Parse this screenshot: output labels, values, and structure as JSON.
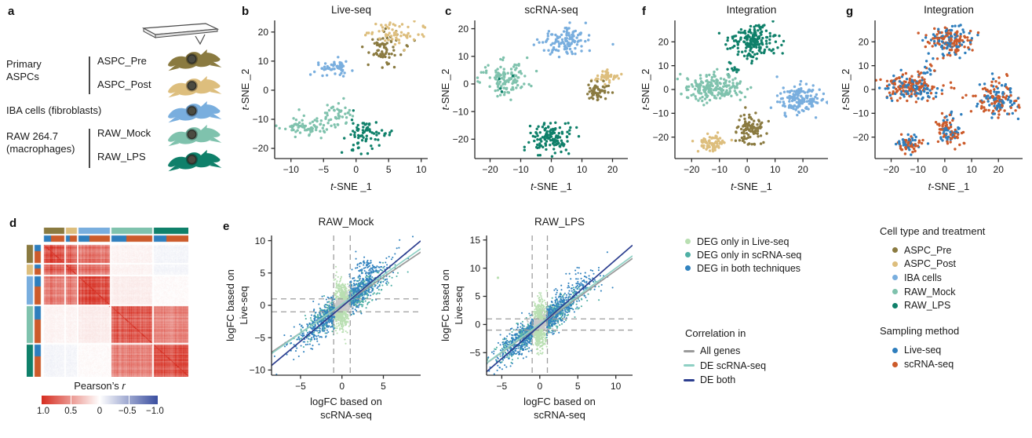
{
  "panels": {
    "a": "a",
    "b": "b",
    "c": "c",
    "d": "d",
    "e": "e",
    "f": "f",
    "g": "g"
  },
  "colors": {
    "ASPC_Pre": "#8a7a40",
    "ASPC_Post": "#ddbe7d",
    "IBA": "#79aede",
    "RAW_Mock": "#7fc2ad",
    "RAW_LPS": "#0f806a",
    "live_seq": "#2e7ebd",
    "scrna_seq": "#cc5b2b",
    "deg_live": "#b9dfb2",
    "deg_scrna": "#4fb0a5",
    "deg_both": "#3283bf",
    "pt_gray": "#c8c8c8",
    "line_all": "#9a9a9a",
    "line_de_scrna": "#8ed0c4",
    "line_de_both": "#2c3e8f",
    "heat_pos": "#d62d20",
    "heat_neg": "#3a4ea0",
    "axis": "#2b2b2b",
    "dash": "#9f9f9f"
  },
  "panel_a": {
    "label": "a",
    "groups": [
      {
        "line1": "Primary",
        "line2": "ASPCs",
        "items": [
          {
            "label": "ASPC_Pre",
            "color_key": "ASPC_Pre"
          },
          {
            "label": "ASPC_Post",
            "color_key": "ASPC_Post"
          }
        ]
      },
      {
        "line1": "IBA cells (fibroblasts)",
        "line2": "",
        "items": [
          {
            "label": "",
            "color_key": "IBA"
          }
        ]
      },
      {
        "line1": "RAW 264.7",
        "line2": "(macrophages)",
        "items": [
          {
            "label": "RAW_Mock",
            "color_key": "RAW_Mock"
          },
          {
            "label": "RAW_LPS",
            "color_key": "RAW_LPS"
          }
        ]
      }
    ]
  },
  "legend_deg": {
    "items": [
      {
        "label": "DEG only in Live-seq",
        "color_key": "deg_live"
      },
      {
        "label": "DEG only in scRNA-seq",
        "color_key": "deg_scrna"
      },
      {
        "label": "DEG in both techniques",
        "color_key": "deg_both"
      }
    ]
  },
  "legend_correlation": {
    "title": "Correlation in",
    "items": [
      {
        "label": "All genes",
        "color_key": "line_all"
      },
      {
        "label": "DE scRNA-seq",
        "color_key": "line_de_scrna"
      },
      {
        "label": "DE both",
        "color_key": "line_de_both"
      }
    ]
  },
  "legend_cell_type": {
    "title": "Cell type and treatment",
    "items": [
      {
        "label": "ASPC_Pre",
        "color_key": "ASPC_Pre"
      },
      {
        "label": "ASPC_Post",
        "color_key": "ASPC_Post"
      },
      {
        "label": "IBA cells",
        "color_key": "IBA"
      },
      {
        "label": "RAW_Mock",
        "color_key": "RAW_Mock"
      },
      {
        "label": "RAW_LPS",
        "color_key": "RAW_LPS"
      }
    ]
  },
  "legend_sampling": {
    "title": "Sampling method",
    "items": [
      {
        "label": "Live-seq",
        "color_key": "live_seq"
      },
      {
        "label": "scRNA-seq",
        "color_key": "scrna_seq"
      }
    ]
  },
  "chart_data": [
    {
      "id": "b",
      "type": "scatter",
      "kind": "tsne",
      "title": "Live-seq",
      "xlabel": "t-SNE _1",
      "ylabel": "t-SNE _2",
      "italic_first": true,
      "xlim": [
        -12.5,
        11
      ],
      "xticks": [
        -10,
        -5,
        0,
        5,
        10
      ],
      "ylim": [
        -23.5,
        24
      ],
      "yticks": [
        -20,
        -10,
        0,
        10,
        20
      ],
      "grid": false,
      "legend_position": "none",
      "clusters": [
        {
          "name": "ASPC_Pre",
          "color_key": "ASPC_Pre",
          "n": 70,
          "cx": 4.3,
          "cy": 14.5,
          "sx": 1.5,
          "sy": 2.8
        },
        {
          "name": "ASPC_Post",
          "color_key": "ASPC_Post",
          "n": 60,
          "cx": 6.6,
          "cy": 19,
          "sx": 2.1,
          "sy": 2.1
        },
        {
          "name": "IBA cells",
          "color_key": "IBA",
          "n": 50,
          "cx": -3.3,
          "cy": 7.6,
          "sx": 1.8,
          "sy": 1.5
        },
        {
          "name": "RAW_Mock",
          "color_key": "RAW_Mock",
          "n": 75,
          "cx": -7.5,
          "cy": -12.3,
          "sx": 2.2,
          "sy": 1.9
        },
        {
          "name": "RAW_Mock",
          "color_key": "RAW_Mock",
          "n": 40,
          "cx": -2.6,
          "cy": -7.8,
          "sx": 1.4,
          "sy": 2.2
        },
        {
          "name": "RAW_LPS",
          "color_key": "RAW_LPS",
          "n": 65,
          "cx": 0.8,
          "cy": -15.5,
          "sx": 1.2,
          "sy": 3.4
        },
        {
          "name": "RAW_LPS",
          "color_key": "RAW_LPS",
          "n": 10,
          "cx": 3.6,
          "cy": -14.6,
          "sx": 1.3,
          "sy": 0.5
        }
      ]
    },
    {
      "id": "c",
      "type": "scatter",
      "kind": "tsne",
      "title": "scRNA-seq",
      "xlabel": "t-SNE _1",
      "ylabel": "t-SNE _2",
      "italic_first": true,
      "xlim": [
        -25,
        25
      ],
      "xticks": [
        -20,
        -10,
        0,
        10,
        20
      ],
      "ylim": [
        -27,
        23
      ],
      "yticks": [
        -20,
        -10,
        0,
        10,
        20
      ],
      "grid": false,
      "legend_position": "none",
      "clusters": [
        {
          "name": "IBA cells",
          "color_key": "IBA",
          "n": 120,
          "cx": 4,
          "cy": 15.5,
          "sx": 4.0,
          "sy": 2.4
        },
        {
          "name": "RAW_Mock",
          "color_key": "RAW_Mock",
          "n": 120,
          "cx": -15,
          "cy": 1.5,
          "sx": 3.4,
          "sy": 3.0
        },
        {
          "name": "RAW_LPS",
          "color_key": "RAW_LPS",
          "n": 4,
          "cx": -16,
          "cy": 0.5,
          "sx": 2.0,
          "sy": 2.5
        },
        {
          "name": "ASPC_Post",
          "color_key": "ASPC_Post",
          "n": 45,
          "cx": 18.2,
          "cy": 2.6,
          "sx": 2.0,
          "sy": 1.0
        },
        {
          "name": "ASPC_Pre",
          "color_key": "ASPC_Pre",
          "n": 55,
          "cx": 15.2,
          "cy": -2.2,
          "sx": 2.0,
          "sy": 1.7
        },
        {
          "name": "RAW_LPS",
          "color_key": "RAW_LPS",
          "n": 125,
          "cx": 0,
          "cy": -19.5,
          "sx": 3.3,
          "sy": 2.8
        }
      ]
    },
    {
      "id": "f",
      "type": "scatter",
      "kind": "tsne",
      "title": "Integration",
      "xlabel": "t-SNE _1",
      "ylabel": "t-SNE _2",
      "italic_first": true,
      "xlim": [
        -26,
        29
      ],
      "xticks": [
        -20,
        -10,
        0,
        10,
        20
      ],
      "ylim": [
        -29,
        29
      ],
      "yticks": [
        -20,
        -10,
        0,
        10,
        20
      ],
      "grid": false,
      "legend_position": "none",
      "clusters": [
        {
          "name": "RAW_LPS",
          "color_key": "RAW_LPS",
          "n": 180,
          "cx": 2,
          "cy": 20.5,
          "sx": 4.2,
          "sy": 3.2
        },
        {
          "name": "RAW_LPS",
          "color_key": "RAW_LPS",
          "n": 12,
          "cx": -5,
          "cy": 9.5,
          "sx": 1.0,
          "sy": 1.5
        },
        {
          "name": "RAW_Mock",
          "color_key": "RAW_Mock",
          "n": 210,
          "cx": -12.5,
          "cy": 0.8,
          "sx": 5.3,
          "sy": 2.7
        },
        {
          "name": "IBA cells",
          "color_key": "IBA",
          "n": 160,
          "cx": 19.5,
          "cy": -4,
          "sx": 4.2,
          "sy": 3.4
        },
        {
          "name": "ASPC_Pre",
          "color_key": "ASPC_Pre",
          "n": 100,
          "cx": 1.2,
          "cy": -17.5,
          "sx": 2.5,
          "sy": 3.1
        },
        {
          "name": "ASPC_Post",
          "color_key": "ASPC_Post",
          "n": 70,
          "cx": -13,
          "cy": -22.5,
          "sx": 2.5,
          "sy": 1.6
        }
      ]
    },
    {
      "id": "g",
      "type": "scatter",
      "kind": "tsne",
      "title": "Integration",
      "xlabel": "t-SNE _1",
      "ylabel": "t-SNE _2",
      "italic_first": true,
      "xlim": [
        -26,
        29
      ],
      "xticks": [
        -20,
        -10,
        0,
        10,
        20
      ],
      "ylim": [
        -29,
        29
      ],
      "yticks": [
        -20,
        -10,
        0,
        10,
        20
      ],
      "grid": false,
      "legend_position": "none",
      "mix_colors": [
        "live_seq",
        "scrna_seq"
      ],
      "mix_ratio": 0.45,
      "clusters": [
        {
          "name": "RAW_LPS",
          "n": 180,
          "cx": 2,
          "cy": 20.5,
          "sx": 4.2,
          "sy": 3.2
        },
        {
          "name": "RAW_LPS",
          "n": 12,
          "cx": -5,
          "cy": 9.5,
          "sx": 1.0,
          "sy": 1.5
        },
        {
          "name": "RAW_Mock",
          "n": 210,
          "cx": -12.5,
          "cy": 0.8,
          "sx": 5.3,
          "sy": 2.7
        },
        {
          "name": "IBA cells",
          "n": 160,
          "cx": 19.5,
          "cy": -4,
          "sx": 4.2,
          "sy": 3.4
        },
        {
          "name": "ASPC_Pre",
          "n": 100,
          "cx": 1.2,
          "cy": -17.5,
          "sx": 2.5,
          "sy": 3.1
        },
        {
          "name": "ASPC_Post",
          "n": 70,
          "cx": -13,
          "cy": -22.5,
          "sx": 2.5,
          "sy": 1.6
        }
      ]
    },
    {
      "id": "e1",
      "type": "scatter",
      "kind": "fc",
      "title": "RAW_Mock",
      "xlabel_lines": [
        "logFC based on",
        "scRNA-seq"
      ],
      "ylabel_lines": [
        "logFC based on",
        "Live-seq"
      ],
      "xlim": [
        -8.5,
        9.5
      ],
      "xticks": [
        -5,
        0,
        5
      ],
      "ylim": [
        -10.8,
        10.8
      ],
      "yticks": [
        -10,
        -5,
        0,
        5,
        10
      ],
      "vlines": [
        -1,
        1
      ],
      "hlines": [
        -1,
        1
      ],
      "grid": false,
      "legend_position": "none",
      "lines": [
        {
          "name": "All genes",
          "color_key": "line_all",
          "slope": 0.86,
          "intercept": 0.05
        },
        {
          "name": "DE scRNA-seq",
          "color_key": "line_de_scrna",
          "slope": 0.9,
          "intercept": 0.2
        },
        {
          "name": "DE both",
          "color_key": "line_de_both",
          "slope": 1.07,
          "intercept": -0.2
        }
      ],
      "point_groups": [
        {
          "name": "all genes",
          "color_key": "pt_gray",
          "n": 850,
          "sx": 1.0,
          "slope": 0.8,
          "noise": 0.75
        },
        {
          "name": "DEG only in Live-seq",
          "color_key": "deg_live",
          "n": 380,
          "band": true,
          "ymin": 0.9,
          "ysd": 1.6
        },
        {
          "name": "DEG only in scRNA-seq",
          "color_key": "deg_scrna",
          "n": 480,
          "sx": 2.5,
          "slope": 0.82,
          "noise": 1.1,
          "min_abs_x": 0.9
        },
        {
          "name": "DEG in both techniques",
          "color_key": "deg_both",
          "n": 620,
          "sx": 2.7,
          "slope": 1.05,
          "noise": 1.3,
          "min_abs_x": 0.9
        },
        {
          "name": "DEG in both techniques",
          "color_key": "deg_both",
          "n": 60,
          "cx": 3.0,
          "cy": 6.0,
          "sx": 0.8,
          "sy": 0.8
        }
      ]
    },
    {
      "id": "e2",
      "type": "scatter",
      "kind": "fc",
      "title": "RAW_LPS",
      "xlabel_lines": [
        "logFC based on",
        "scRNA-seq"
      ],
      "ylabel_lines": [
        "logFC based on",
        "Live-seq"
      ],
      "xlim": [
        -7,
        12.2
      ],
      "xticks": [
        -5,
        0,
        5,
        10
      ],
      "ylim": [
        -9,
        15.8
      ],
      "yticks": [
        -5,
        0,
        5,
        10,
        15
      ],
      "vlines": [
        -1,
        1
      ],
      "hlines": [
        -1,
        1
      ],
      "grid": false,
      "legend_position": "none",
      "lines": [
        {
          "name": "All genes",
          "color_key": "line_all",
          "slope": 0.97,
          "intercept": -0.1
        },
        {
          "name": "DE scRNA-seq",
          "color_key": "line_de_scrna",
          "slope": 0.99,
          "intercept": 0.1
        },
        {
          "name": "DE both",
          "color_key": "line_de_both",
          "slope": 1.17,
          "intercept": -0.2
        }
      ],
      "point_groups": [
        {
          "name": "all genes",
          "color_key": "pt_gray",
          "n": 850,
          "sx": 1.0,
          "slope": 0.85,
          "noise": 0.8
        },
        {
          "name": "DEG only in Live-seq",
          "color_key": "deg_live",
          "n": 400,
          "band": true,
          "ymin": 0.9,
          "ysd": 1.9
        },
        {
          "name": "DEG only in scRNA-seq",
          "color_key": "deg_scrna",
          "n": 520,
          "sx": 2.6,
          "slope": 0.9,
          "noise": 1.2,
          "min_abs_x": 0.9
        },
        {
          "name": "DEG in both techniques",
          "color_key": "deg_both",
          "n": 680,
          "sx": 2.9,
          "slope": 1.1,
          "noise": 1.4,
          "min_abs_x": 0.9
        },
        {
          "name": "DEG in both techniques",
          "color_key": "deg_both",
          "n": 50,
          "cx": 6.3,
          "cy": 7.8,
          "sx": 1.2,
          "sy": 1.0
        }
      ],
      "extra_points": [
        {
          "x": -5.5,
          "y": 8.3,
          "color_key": "deg_live"
        }
      ]
    },
    {
      "id": "d",
      "type": "heatmap",
      "title": "",
      "groups": [
        "ASPC_Pre",
        "ASPC_Post",
        "IBA cells",
        "RAW_Mock",
        "RAW_LPS"
      ],
      "group_color_keys": [
        "ASPC_Pre",
        "ASPC_Post",
        "IBA",
        "RAW_Mock",
        "RAW_LPS"
      ],
      "group_fractions": [
        0.145,
        0.08,
        0.225,
        0.295,
        0.255
      ],
      "sampling_colors": [
        "live_seq",
        "scrna_seq"
      ],
      "sampling_fractions": [
        0.36,
        0.64
      ],
      "matrix": [
        [
          0.8,
          0.7,
          0.6,
          0.05,
          -0.05
        ],
        [
          0.7,
          0.78,
          0.6,
          0.05,
          -0.05
        ],
        [
          0.6,
          0.6,
          0.8,
          0.08,
          0.02
        ],
        [
          0.05,
          0.05,
          0.08,
          0.72,
          0.55
        ],
        [
          -0.05,
          -0.05,
          0.02,
          0.55,
          0.78
        ]
      ],
      "colorbar": {
        "title_main": "Pearson’s ",
        "title_italic": "r",
        "min": -1,
        "max": 1,
        "tick_labels": [
          "1.0",
          "0.5",
          "0",
          "−0.5",
          "−1.0"
        ]
      }
    }
  ]
}
